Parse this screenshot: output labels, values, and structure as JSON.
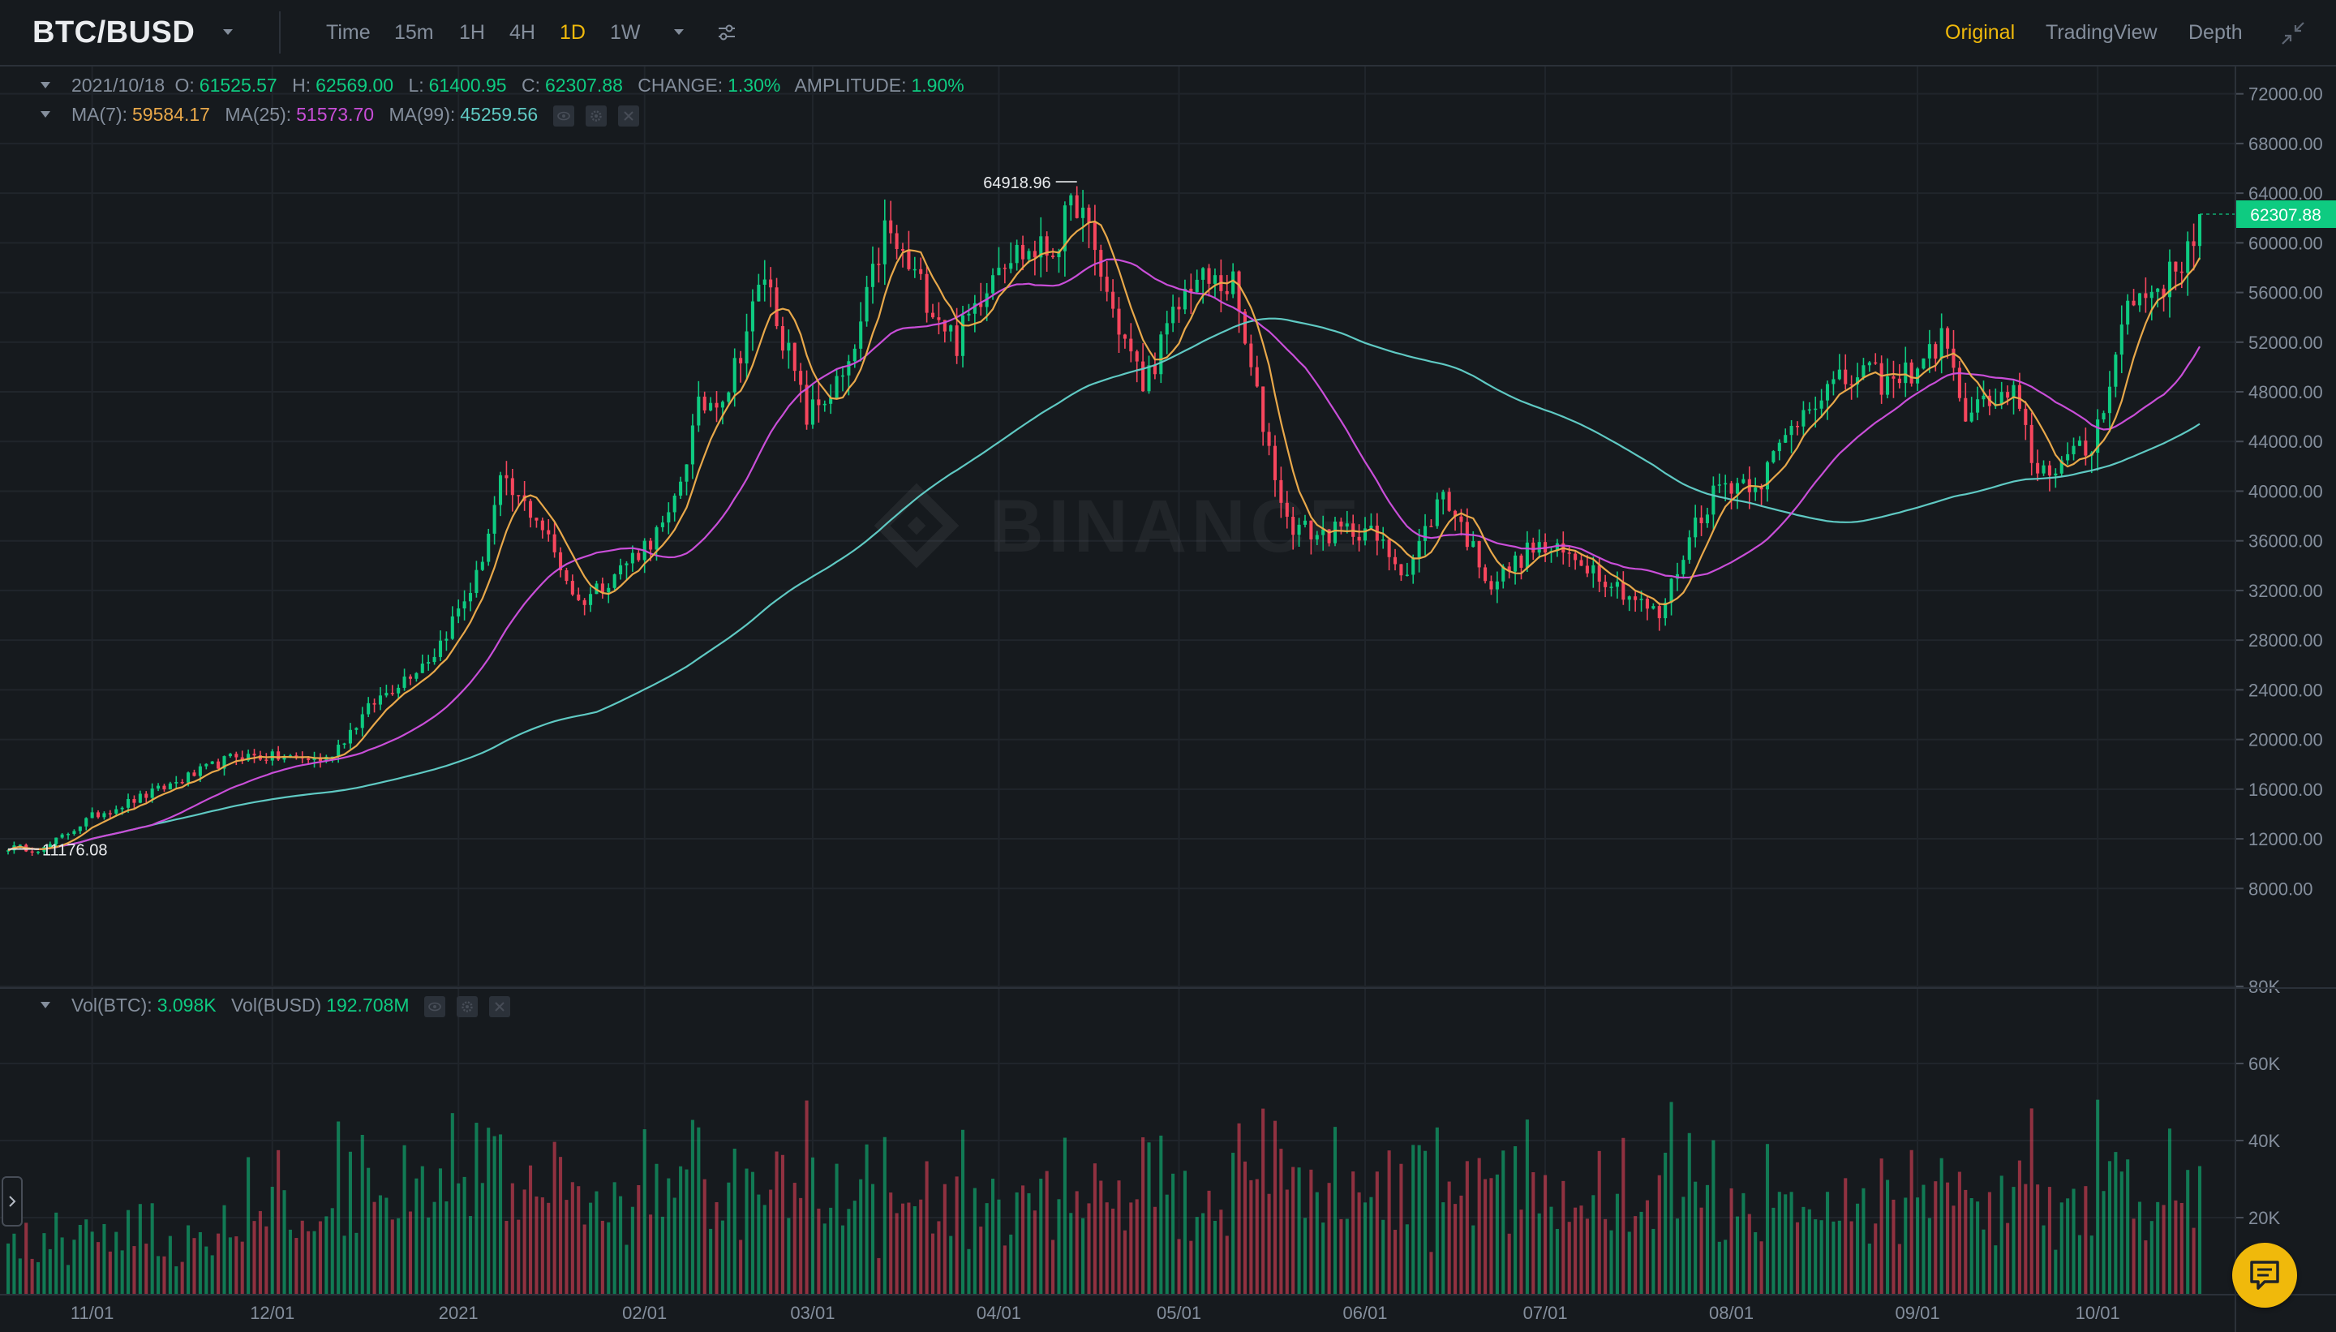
{
  "toolbar": {
    "symbol": "BTC/BUSD",
    "timeframes": [
      "Time",
      "15m",
      "1H",
      "4H",
      "1D",
      "1W"
    ],
    "active_timeframe": "1D",
    "views": [
      "Original",
      "TradingView",
      "Depth"
    ],
    "active_view": "Original"
  },
  "ohlc_legend": {
    "date": "2021/10/18",
    "open_label": "O:",
    "open": "61525.57",
    "high_label": "H:",
    "high": "62569.00",
    "low_label": "L:",
    "low": "61400.95",
    "close_label": "C:",
    "close": "62307.88",
    "change_label": "CHANGE:",
    "change": "1.30%",
    "amplitude_label": "AMPLITUDE:",
    "amplitude": "1.90%"
  },
  "ma_legend": {
    "ma7_label": "MA(7):",
    "ma7": "59584.17",
    "ma25_label": "MA(25):",
    "ma25": "51573.70",
    "ma99_label": "MA(99):",
    "ma99": "45259.56"
  },
  "vol_legend": {
    "btc_label": "Vol(BTC):",
    "btc": "3.098K",
    "busd_label": "Vol(BUSD)",
    "busd": "192.708M"
  },
  "price_axis": {
    "ticks": [
      "72000.00",
      "68000.00",
      "64000.00",
      "60000.00",
      "56000.00",
      "52000.00",
      "48000.00",
      "44000.00",
      "40000.00",
      "36000.00",
      "32000.00",
      "28000.00",
      "24000.00",
      "20000.00",
      "16000.00",
      "12000.00",
      "8000.00"
    ],
    "last_price": "62307.88"
  },
  "volume_axis": {
    "ticks": [
      "80K",
      "60K",
      "40K",
      "20K"
    ]
  },
  "time_axis": {
    "ticks": [
      "11/01",
      "12/01",
      "2021",
      "02/01",
      "03/01",
      "04/01",
      "05/01",
      "06/01",
      "07/01",
      "08/01",
      "09/01",
      "10/01"
    ]
  },
  "annotations": {
    "max_label": "64918.96",
    "min_label": "11176.08"
  },
  "watermark": "BINANCE",
  "colors": {
    "up": "#0ecb81",
    "down": "#f6465d",
    "ma7": "#e8a84a",
    "ma25": "#c94ed8",
    "ma99": "#5fc9c3",
    "accent": "#f0b90b",
    "grid": "#20252b"
  },
  "icons": {
    "symbol_caret": "caret-down-icon",
    "tf_more": "caret-down-icon",
    "settings": "sliders-icon",
    "collapse": "collapse-arrows-icon",
    "chat": "chat-icon",
    "expand": "chevron-right-icon"
  },
  "chart_data": {
    "type": "candlestick",
    "series_name": "BTC/BUSD 1D",
    "price_range": [
      5600,
      74200
    ],
    "volume_range": [
      0,
      80000
    ],
    "x_start": "2020-10-18",
    "x_end": "2021-10-18",
    "price_keyframes": [
      [
        "2020-10-18",
        11300
      ],
      [
        "2020-10-24",
        11200
      ],
      [
        "2020-11-01",
        13800
      ],
      [
        "2020-11-10",
        15500
      ],
      [
        "2020-11-25",
        18700
      ],
      [
        "2020-12-10",
        18400
      ],
      [
        "2020-12-18",
        23000
      ],
      [
        "2020-12-28",
        27000
      ],
      [
        "2021-01-04",
        33000
      ],
      [
        "2021-01-08",
        40500
      ],
      [
        "2021-01-14",
        38000
      ],
      [
        "2021-01-21",
        31000
      ],
      [
        "2021-01-28",
        33800
      ],
      [
        "2021-02-05",
        37500
      ],
      [
        "2021-02-10",
        46500
      ],
      [
        "2021-02-15",
        48500
      ],
      [
        "2021-02-21",
        57500
      ],
      [
        "2021-02-28",
        46000
      ],
      [
        "2021-03-07",
        49500
      ],
      [
        "2021-03-13",
        61000
      ],
      [
        "2021-03-25",
        52000
      ],
      [
        "2021-04-01",
        59000
      ],
      [
        "2021-04-10",
        59500
      ],
      [
        "2021-04-14",
        63500
      ],
      [
        "2021-04-20",
        54500
      ],
      [
        "2021-04-25",
        48500
      ],
      [
        "2021-05-03",
        57000
      ],
      [
        "2021-05-10",
        56500
      ],
      [
        "2021-05-13",
        49500
      ],
      [
        "2021-05-19",
        37500
      ],
      [
        "2021-05-24",
        36500
      ],
      [
        "2021-06-01",
        37000
      ],
      [
        "2021-06-08",
        33500
      ],
      [
        "2021-06-14",
        40000
      ],
      [
        "2021-06-22",
        32500
      ],
      [
        "2021-06-29",
        35500
      ],
      [
        "2021-07-07",
        34500
      ],
      [
        "2021-07-20",
        29900
      ],
      [
        "2021-07-26",
        37500
      ],
      [
        "2021-07-30",
        40500
      ],
      [
        "2021-08-06",
        41000
      ],
      [
        "2021-08-14",
        47500
      ],
      [
        "2021-08-23",
        49500
      ],
      [
        "2021-08-28",
        48500
      ],
      [
        "2021-09-06",
        52500
      ],
      [
        "2021-09-08",
        46500
      ],
      [
        "2021-09-17",
        47500
      ],
      [
        "2021-09-21",
        41500
      ],
      [
        "2021-09-30",
        43500
      ],
      [
        "2021-10-06",
        55000
      ],
      [
        "2021-10-14",
        57500
      ],
      [
        "2021-10-18",
        62307
      ]
    ]
  }
}
